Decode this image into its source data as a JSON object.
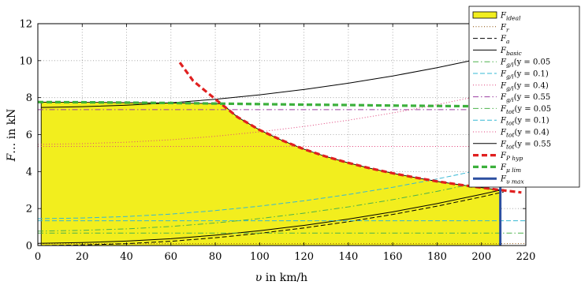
{
  "chart_data": {
    "type": "line",
    "xlim": [
      0,
      220
    ],
    "ylim": [
      0,
      12
    ],
    "xticks": [
      0,
      20,
      40,
      60,
      80,
      100,
      120,
      140,
      160,
      180,
      200,
      220
    ],
    "yticks": [
      0,
      2,
      4,
      6,
      8,
      10,
      12
    ],
    "xticklabels": [
      "0",
      "20",
      "40",
      "60",
      "80",
      "100",
      "120",
      "140",
      "160",
      "180",
      "200",
      "220"
    ],
    "yticklabels": [
      "0",
      "2",
      "4",
      "6",
      "8",
      "10",
      "12"
    ],
    "xlabel": {
      "var": "υ",
      "rest": " in km/h"
    },
    "ylabel": {
      "var": "F",
      "rest": "… in kN"
    },
    "grid": "dotted",
    "legend_position": "top-right",
    "legend": [
      {
        "main": "F",
        "sub": "ideal",
        "tail": ""
      },
      {
        "main": "F",
        "sub": "r",
        "tail": ""
      },
      {
        "main": "F",
        "sub": "a",
        "tail": ""
      },
      {
        "main": "F",
        "sub": "basic",
        "tail": ""
      },
      {
        "main": "F",
        "sub": "g/i",
        "tail": "(y = 0.05"
      },
      {
        "main": "F",
        "sub": "g/i",
        "tail": "(y = 0.1)"
      },
      {
        "main": "F",
        "sub": "g/i",
        "tail": "(y = 0.4)"
      },
      {
        "main": "F",
        "sub": "g/i",
        "tail": "(y = 0.55"
      },
      {
        "main": "F",
        "sub": "tot",
        "tail": "(y = 0.05"
      },
      {
        "main": "F",
        "sub": "tot",
        "tail": "(y = 0.1)"
      },
      {
        "main": "F",
        "sub": "tot",
        "tail": "(y = 0.4)"
      },
      {
        "main": "F",
        "sub": "tot",
        "tail": "(y = 0.55"
      },
      {
        "main": "F",
        "sub": "P hyp",
        "tail": ""
      },
      {
        "main": "F",
        "sub": "μ lim",
        "tail": ""
      },
      {
        "main": "F",
        "sub": "υ max",
        "tail": ""
      }
    ],
    "series": [
      {
        "name": "F_r",
        "color": "#8a4b00",
        "style": "dotted",
        "x": [
          0,
          50,
          100,
          150,
          220
        ],
        "y": [
          0.1,
          0.1,
          0.1,
          0.1,
          0.1
        ]
      },
      {
        "name": "F_a",
        "color": "#000000",
        "style": "dashed",
        "x": [
          0,
          20,
          40,
          60,
          80,
          100,
          120,
          140,
          160,
          180,
          200,
          210
        ],
        "y": [
          0,
          0.03,
          0.1,
          0.23,
          0.42,
          0.66,
          0.95,
          1.29,
          1.68,
          2.13,
          2.63,
          2.9
        ]
      },
      {
        "name": "F_basic",
        "color": "#000000",
        "style": "solid",
        "x": [
          0,
          20,
          40,
          60,
          80,
          100,
          120,
          140,
          160,
          180,
          200,
          210
        ],
        "y": [
          0.12,
          0.16,
          0.24,
          0.37,
          0.56,
          0.8,
          1.09,
          1.43,
          1.82,
          2.27,
          2.77,
          3.04
        ]
      },
      {
        "name": "F_g/i(y = 0.05)",
        "color": "#4cb24c",
        "style": "dashdot",
        "x": [
          0,
          220
        ],
        "y": [
          0.67,
          0.67
        ]
      },
      {
        "name": "F_g/i(y = 0.1)",
        "color": "#36b8d4",
        "style": "dashed",
        "x": [
          0,
          220
        ],
        "y": [
          1.34,
          1.34
        ]
      },
      {
        "name": "F_g/i(y = 0.4)",
        "color": "#e0407a",
        "style": "dotted",
        "x": [
          0,
          220
        ],
        "y": [
          5.36,
          5.36
        ]
      },
      {
        "name": "F_g/i(y = 0.55)",
        "color": "#9c3fa0",
        "style": "dashdot",
        "x": [
          0,
          220
        ],
        "y": [
          7.35,
          7.35
        ]
      },
      {
        "name": "F_tot(y = 0.05)",
        "color": "#4cb24c",
        "style": "dashdot",
        "x": [
          0,
          20,
          40,
          60,
          80,
          100,
          120,
          140,
          160,
          180,
          200,
          220
        ],
        "y": [
          0.78,
          0.82,
          0.9,
          1.03,
          1.22,
          1.46,
          1.75,
          2.09,
          2.48,
          2.93,
          3.43,
          3.98
        ]
      },
      {
        "name": "F_tot(y = 0.1)",
        "color": "#36b8d4",
        "style": "dashed",
        "x": [
          0,
          20,
          40,
          60,
          80,
          100,
          120,
          140,
          160,
          180,
          200,
          220
        ],
        "y": [
          1.45,
          1.49,
          1.57,
          1.7,
          1.89,
          2.13,
          2.42,
          2.76,
          3.15,
          3.6,
          4.1,
          4.65
        ]
      },
      {
        "name": "F_tot(y = 0.4)",
        "color": "#e0407a",
        "style": "dotted",
        "x": [
          0,
          20,
          40,
          60,
          80,
          100,
          120,
          140,
          160,
          180,
          200,
          220
        ],
        "y": [
          5.47,
          5.51,
          5.59,
          5.72,
          5.91,
          6.15,
          6.44,
          6.78,
          7.17,
          7.62,
          8.12,
          8.67
        ]
      },
      {
        "name": "F_tot(y = 0.55)",
        "color": "#000000",
        "style": "solid",
        "x": [
          1.5,
          20,
          40,
          60,
          80,
          100,
          120,
          140,
          160,
          180,
          200,
          220
        ],
        "y": [
          7.47,
          7.51,
          7.59,
          7.72,
          7.91,
          8.15,
          8.44,
          8.78,
          9.17,
          9.62,
          10.12,
          10.67
        ]
      },
      {
        "name": "F_P hyp",
        "color": "#e02020",
        "style": "dashed-thick",
        "x": [
          64,
          70,
          80,
          90,
          100,
          110,
          120,
          130,
          140,
          150,
          160,
          170,
          180,
          190,
          200,
          210,
          218
        ],
        "y": [
          9.9,
          8.91,
          7.92,
          6.95,
          6.25,
          5.69,
          5.21,
          4.81,
          4.47,
          4.17,
          3.91,
          3.68,
          3.47,
          3.29,
          3.13,
          2.98,
          2.87
        ]
      },
      {
        "name": "F_μ lim",
        "color": "#3cb03c",
        "style": "dashed-thick",
        "x": [
          0,
          20,
          40,
          60,
          80,
          100,
          120,
          140,
          160,
          180,
          200,
          220
        ],
        "y": [
          7.76,
          7.75,
          7.73,
          7.71,
          7.68,
          7.65,
          7.62,
          7.6,
          7.57,
          7.55,
          7.53,
          7.5
        ]
      },
      {
        "name": "F_υ max",
        "color": "#2c4fa0",
        "style": "solid-thick",
        "x": [
          208.5,
          208.5
        ],
        "y": [
          0,
          9.5
        ]
      }
    ],
    "ideal_area": {
      "color": "#f2ee1e",
      "x": [
        1.5,
        20,
        40,
        60,
        80,
        83,
        90,
        100,
        110,
        120,
        130,
        140,
        150,
        160,
        170,
        180,
        190,
        200,
        208.5
      ],
      "y": [
        7.76,
        7.75,
        7.73,
        7.71,
        7.68,
        7.67,
        6.95,
        6.25,
        5.69,
        5.21,
        4.81,
        4.47,
        4.17,
        3.91,
        3.68,
        3.47,
        3.29,
        3.13,
        3.0
      ]
    }
  }
}
